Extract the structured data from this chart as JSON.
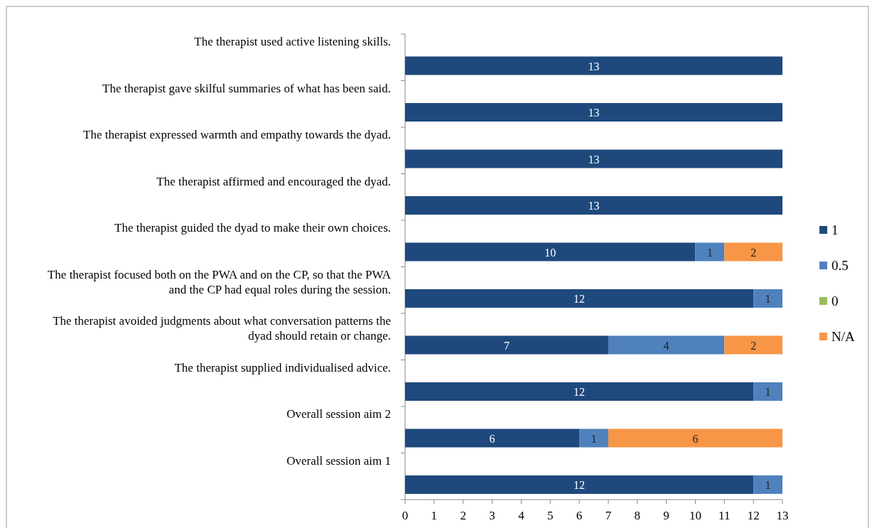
{
  "chart_data": {
    "type": "bar",
    "orientation": "horizontal",
    "stacked": true,
    "data_labels": true,
    "legend": "right",
    "categories": [
      "The therapist used active listening skills.",
      "The therapist gave skilful summaries of what has been said.",
      "The therapist expressed warmth and empathy towards the dyad.",
      "The therapist affirmed and encouraged the dyad.",
      "The therapist guided the dyad to make their own choices.",
      "The therapist focused both on the PWA and on the CP, so that the PWA and the CP had equal roles during the session.",
      "The therapist avoided judgments about what conversation patterns the dyad should retain or change.",
      "The therapist supplied individualised advice.",
      "Overall session aim 2",
      "Overall session aim 1"
    ],
    "series": [
      {
        "name": "1",
        "color": "#1f497d",
        "values": [
          13,
          13,
          13,
          13,
          10,
          12,
          7,
          12,
          6,
          12
        ]
      },
      {
        "name": "0.5",
        "color": "#4f81bd",
        "values": [
          null,
          null,
          null,
          null,
          1,
          1,
          4,
          1,
          1,
          1
        ]
      },
      {
        "name": "0",
        "color": "#9bbb59",
        "values": [
          null,
          null,
          null,
          null,
          null,
          null,
          null,
          null,
          null,
          null
        ]
      },
      {
        "name": "N/A",
        "color": "#f79646",
        "values": [
          null,
          null,
          null,
          null,
          2,
          null,
          2,
          null,
          6,
          null
        ]
      }
    ],
    "xlim": [
      0,
      13
    ],
    "xticks": [
      0,
      1,
      2,
      3,
      4,
      5,
      6,
      7,
      8,
      9,
      10,
      11,
      12,
      13
    ]
  }
}
